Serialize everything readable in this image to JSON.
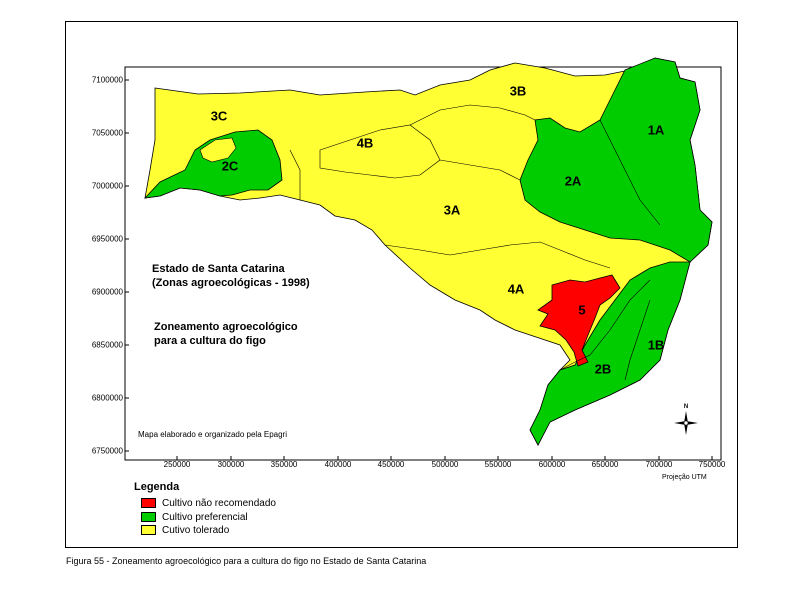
{
  "map": {
    "title_line1": "Estado de Santa Catarina",
    "title_line2": "(Zonas agroecológicas - 1998)",
    "subtitle_line1": "Zoneamento agroecológico",
    "subtitle_line2": "para a cultura do figo",
    "credit": "Mapa elaborado e organizado pela Epagri",
    "projection": "Projeção UTM",
    "y_ticks": [
      "7100000",
      "7050000",
      "7000000",
      "6950000",
      "6900000",
      "6850000",
      "6800000",
      "6750000"
    ],
    "x_ticks": [
      "250000",
      "300000",
      "350000",
      "400000",
      "450000",
      "500000",
      "550000",
      "600000",
      "650000",
      "700000",
      "750000"
    ],
    "zones": [
      "1A",
      "1B",
      "2A",
      "2B",
      "2C",
      "3A",
      "3B",
      "3C",
      "4A",
      "4B",
      "5"
    ],
    "colors": {
      "nao_recomendado": "#ff0000",
      "preferencial": "#00cc00",
      "tolerado": "#ffff33"
    }
  },
  "legend": {
    "title": "Legenda",
    "items": [
      {
        "label": "Cultivo não recomendado",
        "color": "#ff0000"
      },
      {
        "label": "Cultivo preferencial",
        "color": "#00cc00"
      },
      {
        "label": "Cutivo tolerado",
        "color": "#ffff33"
      }
    ]
  },
  "caption": "Figura 55 - Zoneamento agroecológico para a cultura do figo no Estado de Santa Catarina"
}
